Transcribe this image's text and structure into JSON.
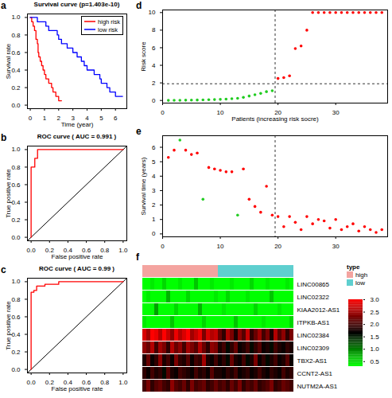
{
  "chart_data": [
    {
      "panel": "a",
      "type": "step",
      "title": "Survival curve (p=1.403e-10)",
      "x_label": "Time (year)",
      "y_label": "Survival rate",
      "xlim": [
        -0.2,
        6.8
      ],
      "xticks": [
        0,
        1,
        2,
        3,
        4,
        5,
        6
      ],
      "ylim": [
        -0.04,
        1.04
      ],
      "yticks": [
        {
          "value": 0,
          "label": "0.0"
        },
        {
          "value": 0.2,
          "label": "0.2"
        },
        {
          "value": 0.4,
          "label": "0.4"
        },
        {
          "value": 0.6,
          "label": "0.6"
        },
        {
          "value": 0.8,
          "label": "0.8"
        },
        {
          "value": 1,
          "label": "1.0"
        }
      ],
      "legend": "top-right",
      "series": [
        {
          "name": "high risk",
          "color": "#ff0000",
          "x": [
            0,
            0.1,
            0.2,
            0.3,
            0.4,
            0.5,
            0.55,
            0.6,
            0.7,
            0.8,
            0.9,
            1.0,
            1.1,
            1.3,
            1.5,
            1.6,
            1.8,
            2.0,
            2.2
          ],
          "values": [
            1,
            0.95,
            0.9,
            0.85,
            0.75,
            0.7,
            0.6,
            0.55,
            0.5,
            0.45,
            0.4,
            0.35,
            0.3,
            0.25,
            0.2,
            0.15,
            0.1,
            0.05,
            0.05
          ]
        },
        {
          "name": "low risk",
          "color": "#0000ff",
          "x": [
            0,
            0.5,
            1.1,
            1.3,
            1.9,
            2.0,
            2.2,
            2.6,
            3.0,
            3.3,
            3.6,
            3.8,
            4.0,
            4.5,
            4.9,
            5.0,
            5.4,
            5.6,
            6.0,
            6.5
          ],
          "values": [
            1,
            0.95,
            0.9,
            0.85,
            0.8,
            0.75,
            0.7,
            0.65,
            0.6,
            0.55,
            0.5,
            0.45,
            0.4,
            0.35,
            0.3,
            0.25,
            0.2,
            0.15,
            0.1,
            0.1
          ]
        }
      ]
    },
    {
      "panel": "b",
      "type": "line",
      "title": "ROC curve ( AUC = 0.991 )",
      "x_label": "False positive rate",
      "y_label": "True positive rate",
      "xlim": [
        -0.04,
        1.04
      ],
      "xticks": [
        {
          "value": 0,
          "label": "0.0"
        },
        {
          "value": 0.2,
          "label": "0.2"
        },
        {
          "value": 0.4,
          "label": "0.4"
        },
        {
          "value": 0.6,
          "label": "0.6"
        },
        {
          "value": 0.8,
          "label": "0.8"
        },
        {
          "value": 1,
          "label": "1.0"
        }
      ],
      "ylim": [
        -0.04,
        1.04
      ],
      "yticks": [
        {
          "value": 0,
          "label": "0.0"
        },
        {
          "value": 0.2,
          "label": "0.2"
        },
        {
          "value": 0.4,
          "label": "0.4"
        },
        {
          "value": 0.6,
          "label": "0.6"
        },
        {
          "value": 0.8,
          "label": "0.8"
        },
        {
          "value": 1,
          "label": "1.0"
        }
      ],
      "series": [
        {
          "color": "#ff0000",
          "x": [
            0,
            0,
            0.04,
            0.04,
            0.07,
            0.07,
            1
          ],
          "values": [
            0,
            0.8,
            0.8,
            0.9,
            0.9,
            1,
            1
          ]
        }
      ]
    },
    {
      "panel": "c",
      "type": "line",
      "title": "ROC curve ( AUC = 0.99 )",
      "x_label": "False positive rate",
      "y_label": "True positive rate",
      "xlim": [
        -0.04,
        1.04
      ],
      "xticks": [
        {
          "value": 0,
          "label": "0.0"
        },
        {
          "value": 0.2,
          "label": "0.2"
        },
        {
          "value": 0.4,
          "label": "0.4"
        },
        {
          "value": 0.6,
          "label": "0.6"
        },
        {
          "value": 0.8,
          "label": "0.8"
        },
        {
          "value": 1,
          "label": "1.0"
        }
      ],
      "ylim": [
        -0.04,
        1.04
      ],
      "yticks": [
        {
          "value": 0,
          "label": "0.0"
        },
        {
          "value": 0.2,
          "label": "0.2"
        },
        {
          "value": 0.4,
          "label": "0.4"
        },
        {
          "value": 0.6,
          "label": "0.6"
        },
        {
          "value": 0.8,
          "label": "0.8"
        },
        {
          "value": 1,
          "label": "1.0"
        }
      ],
      "series": [
        {
          "color": "#ff0000",
          "x": [
            0,
            0,
            0.03,
            0.03,
            0.06,
            0.06,
            0.15,
            0.15,
            0.3,
            0.3,
            1
          ],
          "values": [
            0,
            0.88,
            0.88,
            0.9,
            0.9,
            0.95,
            0.95,
            0.97,
            0.97,
            1,
            1
          ]
        }
      ]
    },
    {
      "panel": "d",
      "type": "scatter",
      "x_label": "Patients (increasing risk socre)",
      "y_label": "Risk score",
      "xlim": [
        0,
        39
      ],
      "xticks": [
        0,
        10,
        20,
        30
      ],
      "ylim": [
        -0.3,
        10.3
      ],
      "yticks": [
        0,
        2,
        4,
        6,
        8,
        10
      ],
      "x": [
        1,
        2,
        3,
        4,
        5,
        6,
        7,
        8,
        9,
        10,
        11,
        12,
        13,
        14,
        15,
        16,
        17,
        18,
        19,
        20,
        21,
        22,
        23,
        24,
        25,
        26,
        27,
        28,
        29,
        30,
        31,
        32,
        33,
        34,
        35,
        36,
        37,
        38
      ],
      "values": [
        0.01,
        0.02,
        0.02,
        0.03,
        0.04,
        0.05,
        0.06,
        0.08,
        0.1,
        0.12,
        0.15,
        0.2,
        0.25,
        0.35,
        0.5,
        0.65,
        0.8,
        1.0,
        1.1,
        2.5,
        2.6,
        2.8,
        5.9,
        6.2,
        8.0,
        10,
        10,
        10,
        10,
        10,
        10,
        10,
        10,
        10,
        10,
        10,
        10,
        10
      ],
      "colors": [
        "#22cc22",
        "#22cc22",
        "#22cc22",
        "#22cc22",
        "#22cc22",
        "#22cc22",
        "#22cc22",
        "#22cc22",
        "#22cc22",
        "#22cc22",
        "#22cc22",
        "#22cc22",
        "#22cc22",
        "#22cc22",
        "#22cc22",
        "#22cc22",
        "#22cc22",
        "#22cc22",
        "#22cc22",
        "#ff0000",
        "#ff0000",
        "#ff0000",
        "#ff0000",
        "#ff0000",
        "#ff0000",
        "#ff0000",
        "#ff0000",
        "#ff0000",
        "#ff0000",
        "#ff0000",
        "#ff0000",
        "#ff0000",
        "#ff0000",
        "#ff0000",
        "#ff0000",
        "#ff0000",
        "#ff0000",
        "#ff0000"
      ],
      "cutoff": {
        "x": 19.5,
        "y": 1.9
      }
    },
    {
      "panel": "e",
      "type": "scatter",
      "y_label": "Survival time (years)",
      "xlim": [
        0,
        39
      ],
      "xticks": [
        0,
        10,
        20,
        30
      ],
      "ylim": [
        -0.2,
        6.8
      ],
      "yticks": [
        0,
        1,
        2,
        3,
        4,
        5,
        6
      ],
      "x": [
        1,
        2,
        3,
        4,
        5,
        6,
        7,
        8,
        9,
        10,
        11,
        12,
        13,
        14,
        15,
        16,
        17,
        18,
        19,
        20,
        21,
        22,
        23,
        24,
        25,
        26,
        27,
        28,
        29,
        30,
        31,
        32,
        33,
        34,
        35,
        36,
        37,
        38
      ],
      "values": [
        5.3,
        5.8,
        6.5,
        5.8,
        5.5,
        5.6,
        2.4,
        4.6,
        4.5,
        4.4,
        4.3,
        4.3,
        1.3,
        4.5,
        2.4,
        1.9,
        1.5,
        3.3,
        1.3,
        1.2,
        0.5,
        1.2,
        0.8,
        0.3,
        1.2,
        0.7,
        1.0,
        0.9,
        0.4,
        1.0,
        0.3,
        0.5,
        0.7,
        0.2,
        0.5,
        0.3,
        0.1,
        0.3
      ],
      "colors": [
        "#ff0000",
        "#ff0000",
        "#22cc22",
        "#ff0000",
        "#ff0000",
        "#ff0000",
        "#22cc22",
        "#ff0000",
        "#ff0000",
        "#ff0000",
        "#ff0000",
        "#ff0000",
        "#22cc22",
        "#ff0000",
        "#ff0000",
        "#ff0000",
        "#ff0000",
        "#ff0000",
        "#ff0000",
        "#ff0000",
        "#ff0000",
        "#ff0000",
        "#ff0000",
        "#ff0000",
        "#ff0000",
        "#ff0000",
        "#ff0000",
        "#ff0000",
        "#ff0000",
        "#ff0000",
        "#ff0000",
        "#ff0000",
        "#ff0000",
        "#ff0000",
        "#ff0000",
        "#ff0000",
        "#ff0000",
        "#ff0000"
      ],
      "cutoff": {
        "x": 19.5
      }
    },
    {
      "panel": "f",
      "type": "heatmap",
      "tick_labels": "y",
      "categories": [
        null,
        null,
        null,
        null,
        null,
        null,
        null,
        null,
        null,
        null,
        null,
        null,
        null,
        null,
        null,
        null,
        null,
        null,
        null,
        null,
        null,
        null,
        null,
        null,
        null,
        null,
        null,
        null,
        null,
        null,
        null,
        null,
        null,
        null,
        null,
        null,
        null,
        null
      ],
      "rows": [
        "LINC00865",
        "LINC02322",
        "KIAA2012-AS1",
        "ITPKB-AS1",
        "LINC02384",
        "LINC02309",
        "TBX2-AS1",
        "CCNT2-AS1",
        "NUTM2A-AS1"
      ],
      "cells": [
        [
          0.3,
          0.3,
          0.4,
          0.3,
          0.3,
          0.5,
          0.3,
          0.3,
          0.3,
          0.4,
          0.3,
          0.3,
          0.3,
          0.6,
          0.3,
          0.3,
          0.3,
          0.4,
          0.3,
          0.3,
          0.3,
          0.3,
          0.4,
          0.3,
          0.3,
          0.3,
          0.3,
          0.5,
          0.3,
          0.3,
          0.3,
          0.4,
          0.3,
          0.3,
          0.3,
          0.3,
          0.4,
          0.3
        ],
        [
          0.3,
          0.4,
          0.3,
          0.3,
          0.3,
          0.3,
          0.7,
          0.3,
          0.3,
          0.3,
          0.3,
          0.5,
          0.3,
          0.3,
          0.3,
          0.3,
          0.3,
          0.3,
          0.4,
          0.3,
          0.3,
          0.5,
          0.3,
          0.3,
          0.3,
          0.3,
          0.4,
          0.3,
          0.3,
          0.3,
          0.3,
          0.3,
          0.6,
          0.3,
          0.3,
          0.3,
          0.3,
          0.3
        ],
        [
          0.3,
          0.3,
          0.3,
          0.8,
          0.3,
          0.3,
          0.3,
          0.3,
          0.5,
          0.3,
          0.3,
          0.3,
          0.3,
          0.3,
          0.7,
          0.3,
          0.3,
          0.3,
          0.3,
          0.3,
          0.4,
          0.3,
          0.3,
          0.3,
          0.3,
          0.3,
          0.3,
          0.3,
          0.5,
          0.3,
          0.3,
          0.3,
          0.3,
          0.3,
          0.4,
          0.3,
          0.3,
          0.3
        ],
        [
          0.4,
          0.3,
          0.3,
          0.3,
          0.3,
          0.3,
          0.3,
          0.6,
          0.3,
          0.3,
          0.3,
          0.3,
          0.3,
          0.3,
          0.3,
          0.5,
          0.3,
          0.3,
          0.3,
          0.3,
          0.3,
          0.3,
          0.3,
          0.6,
          0.3,
          0.3,
          0.3,
          0.3,
          0.3,
          0.3,
          0.4,
          0.3,
          0.3,
          0.3,
          0.3,
          0.3,
          0.3,
          0.5
        ],
        [
          2.8,
          2.5,
          3.0,
          2.9,
          2.6,
          3.0,
          2.7,
          2.4,
          2.9,
          2.6,
          2.8,
          3.0,
          2.5,
          2.7,
          2.9,
          2.3,
          2.8,
          2.6,
          2.7,
          2.2,
          1.9,
          2.6,
          2.3,
          1.8,
          2.4,
          2.1,
          2.7,
          1.9,
          2.2,
          2.5,
          2.0,
          2.3,
          1.8,
          2.6,
          2.1,
          2.4,
          1.9,
          2.3
        ],
        [
          2.4,
          2.2,
          2.6,
          2.0,
          2.5,
          2.3,
          1.9,
          2.6,
          2.2,
          2.4,
          2.0,
          2.5,
          2.3,
          2.1,
          2.6,
          2.2,
          1.9,
          2.4,
          2.3,
          1.8,
          2.0,
          1.6,
          1.9,
          2.2,
          1.7,
          1.8,
          2.0,
          1.6,
          1.9,
          2.1,
          1.7,
          1.8,
          1.6,
          2.0,
          1.8,
          1.7,
          1.9,
          1.8
        ],
        [
          1.8,
          2.2,
          1.7,
          1.9,
          2.4,
          1.8,
          2.0,
          1.7,
          2.3,
          1.9,
          1.8,
          2.1,
          1.7,
          2.0,
          1.9,
          2.5,
          1.8,
          1.7,
          2.0,
          1.7,
          1.9,
          1.6,
          2.2,
          1.8,
          1.7,
          2.0,
          1.6,
          1.8,
          2.3,
          1.7,
          1.9,
          1.6,
          1.8,
          2.0,
          1.7,
          1.8,
          2.1,
          1.7
        ],
        [
          1.9,
          1.7,
          2.0,
          1.8,
          1.9,
          1.6,
          2.1,
          1.8,
          1.7,
          2.0,
          1.9,
          1.8,
          1.7,
          2.0,
          1.8,
          1.9,
          1.7,
          2.1,
          1.8,
          1.8,
          1.7,
          1.9,
          1.8,
          2.0,
          1.7,
          1.8,
          1.9,
          1.7,
          1.8,
          2.0,
          1.8,
          1.7,
          1.9,
          1.8,
          1.7,
          2.0,
          1.8,
          1.9
        ],
        [
          2.0,
          2.3,
          1.9,
          2.1,
          2.2,
          2.0,
          1.9,
          2.4,
          2.1,
          2.0,
          2.2,
          1.9,
          2.3,
          2.0,
          2.1,
          2.2,
          1.9,
          2.0,
          2.2,
          2.0,
          2.1,
          1.9,
          2.2,
          2.0,
          2.3,
          1.9,
          2.1,
          2.0,
          2.2,
          1.9,
          2.0,
          2.1,
          2.3,
          1.9,
          2.0,
          2.2,
          2.1,
          2.0
        ]
      ],
      "groups": [
        "high",
        "high",
        "high",
        "high",
        "high",
        "high",
        "high",
        "high",
        "high",
        "high",
        "high",
        "high",
        "high",
        "high",
        "high",
        "high",
        "high",
        "high",
        "high",
        "low",
        "low",
        "low",
        "low",
        "low",
        "low",
        "low",
        "low",
        "low",
        "low",
        "low",
        "low",
        "low",
        "low",
        "low",
        "low",
        "low",
        "low",
        "low"
      ],
      "group_legend": {
        "title": "type",
        "entries": [
          {
            "name": "high",
            "color": "#f4a4a0"
          },
          {
            "name": "low",
            "color": "#5fcfcf"
          }
        ]
      },
      "colorbar": {
        "range": [
          0.3,
          3.0
        ],
        "colors": [
          "#00ff00",
          "#000000",
          "#ff0000"
        ],
        "ticks": [
          {
            "value": 0.5,
            "label": "0.5"
          },
          {
            "value": 1,
            "label": "1.0"
          },
          {
            "value": 1.5,
            "label": "1.5"
          },
          {
            "value": 2,
            "label": "2.0"
          },
          {
            "value": 2.5,
            "label": "2.5"
          },
          {
            "value": 3,
            "label": "3.0"
          }
        ]
      }
    }
  ]
}
